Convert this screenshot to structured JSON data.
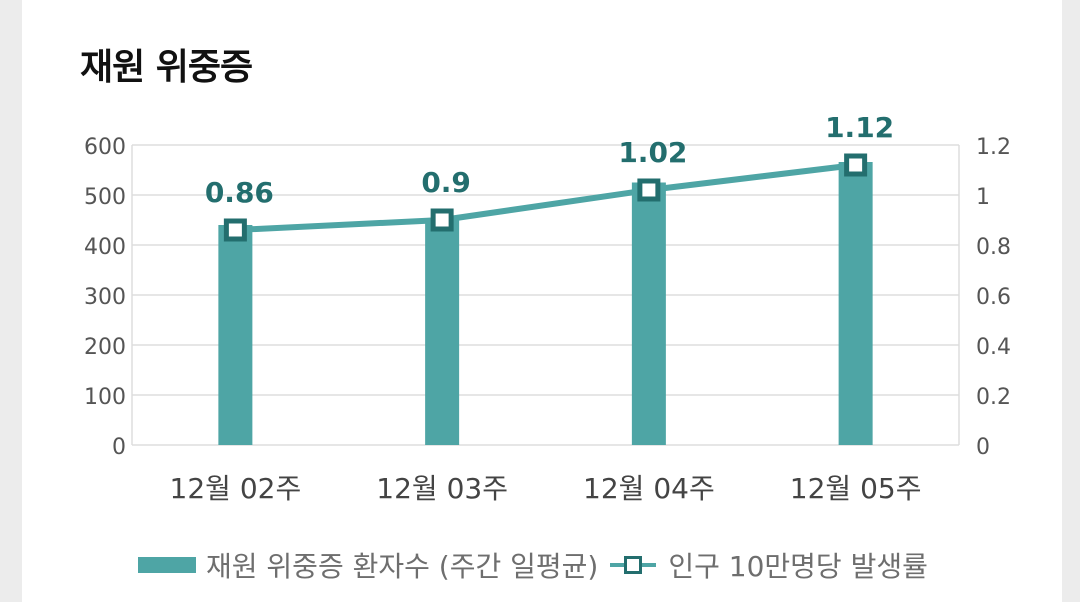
{
  "colors": {
    "bar": "#4ea5a5",
    "line": "#4ea5a5",
    "marker_border": "#236e6e",
    "data_label": "#236e6e",
    "tick": "#555555",
    "grid": "#dddddd"
  },
  "chart_data": {
    "type": "bar",
    "title": "재원 위중증",
    "categories": [
      "12월 02주",
      "12월 03주",
      "12월 04주",
      "12월 05주"
    ],
    "series": [
      {
        "name": "재원 위중증 환자수 (주간 일평균)",
        "type": "bar",
        "axis": "left",
        "values": [
          440,
          452,
          525,
          566
        ]
      },
      {
        "name": "인구 10만명당 발생률",
        "type": "line",
        "axis": "right",
        "values": [
          0.86,
          0.9,
          1.02,
          1.12
        ],
        "data_labels": [
          "0.86",
          "0.9",
          "1.02",
          "1.12"
        ]
      }
    ],
    "y_left": {
      "range": [
        0,
        600
      ],
      "ticks": [
        "0",
        "100",
        "200",
        "300",
        "400",
        "500",
        "600"
      ]
    },
    "y_right": {
      "range": [
        0,
        1.2
      ],
      "ticks": [
        "0",
        "0.2",
        "0.4",
        "0.6",
        "0.8",
        "1",
        "1.2"
      ]
    },
    "grid": true,
    "legend_position": "bottom"
  }
}
